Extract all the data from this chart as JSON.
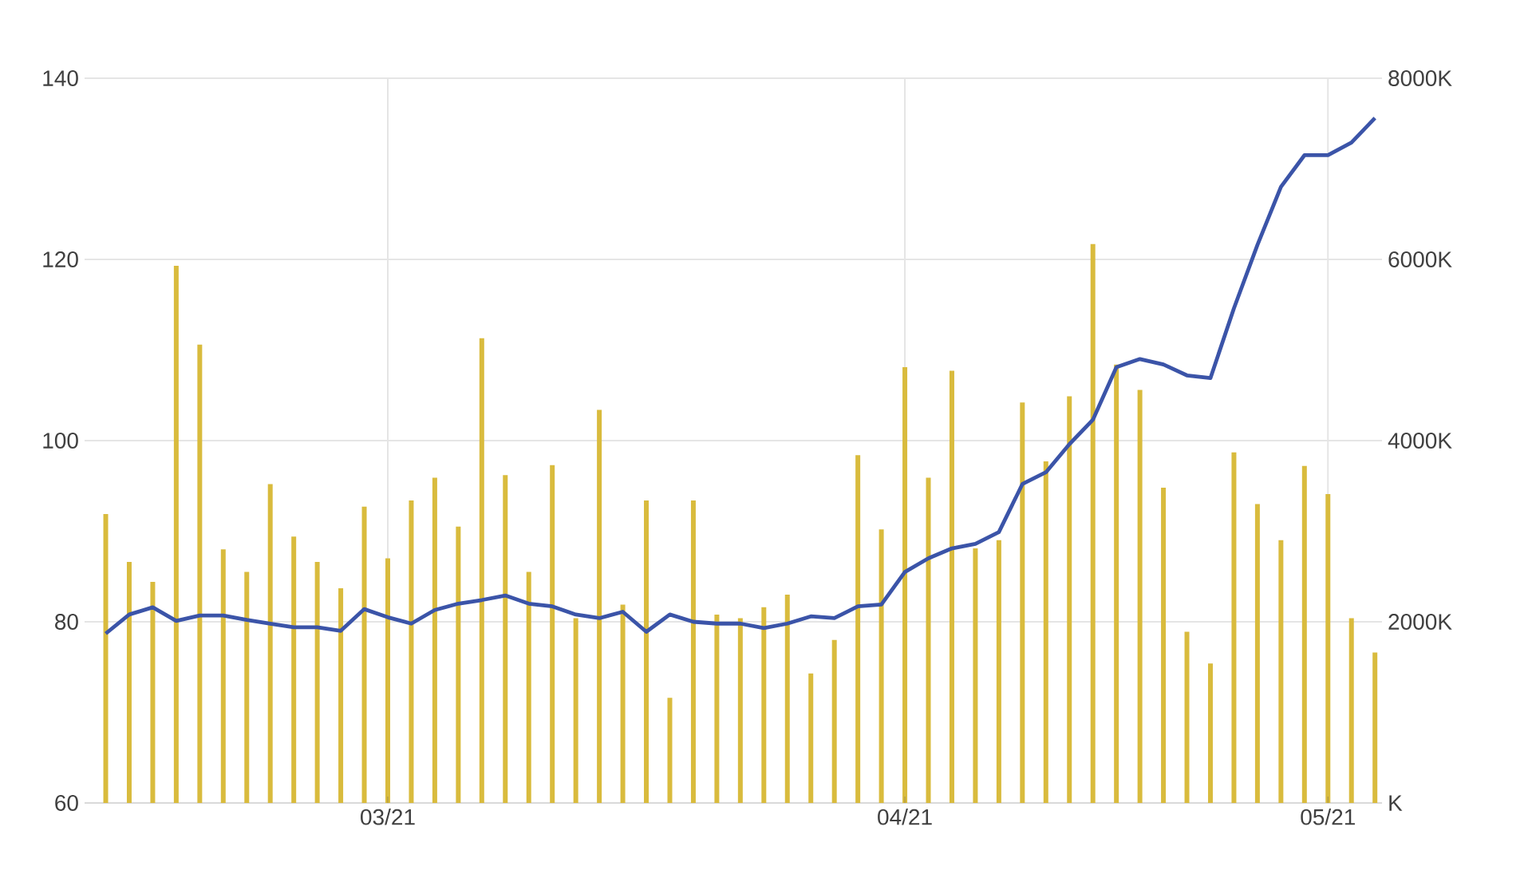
{
  "chart_data": {
    "type": "bar",
    "categories": [
      null,
      null,
      null,
      null,
      null,
      null,
      null,
      null,
      null,
      null,
      null,
      null,
      "03/21",
      null,
      null,
      null,
      null,
      null,
      null,
      null,
      null,
      null,
      null,
      null,
      null,
      null,
      null,
      null,
      null,
      null,
      null,
      null,
      null,
      null,
      "04/21",
      null,
      null,
      null,
      null,
      null,
      null,
      null,
      null,
      null,
      null,
      null,
      null,
      null,
      null,
      null,
      null,
      null,
      "05/21",
      null,
      null
    ],
    "series": [
      {
        "axis": "y2",
        "color": "#d9bb3d",
        "values": [
          3190,
          2660,
          2440,
          5930,
          5060,
          2800,
          2550,
          3520,
          2940,
          2660,
          2370,
          3270,
          2700,
          3340,
          3590,
          3050,
          5130,
          3620,
          2550,
          3730,
          2040,
          4340,
          2190,
          3340,
          1160,
          3340,
          2080,
          2040,
          2160,
          2300,
          1430,
          1800,
          3840,
          3020,
          4810,
          3590,
          4770,
          2810,
          2900,
          4420,
          3770,
          4490,
          6170,
          4840,
          4560,
          3480,
          1890,
          1540,
          3870,
          3300,
          2900,
          3720,
          3410,
          2040,
          1660
        ]
      },
      {
        "type": "line",
        "color": "#3b54a8",
        "values": [
          78.7,
          80.8,
          81.6,
          80.1,
          80.7,
          80.7,
          80.2,
          79.8,
          79.4,
          79.4,
          79.0,
          81.4,
          80.5,
          79.8,
          81.3,
          82.0,
          82.4,
          82.9,
          82.0,
          81.7,
          80.8,
          80.4,
          81.1,
          78.9,
          80.8,
          80.0,
          79.8,
          79.8,
          79.3,
          79.8,
          80.6,
          80.4,
          81.7,
          81.9,
          85.5,
          87.0,
          88.1,
          88.6,
          89.9,
          95.2,
          96.5,
          99.6,
          102.3,
          108.1,
          109.0,
          108.4,
          107.2,
          106.9,
          114.6,
          121.6,
          128.0,
          131.5,
          131.5,
          132.9,
          135.6
        ]
      }
    ],
    "ylim": [
      60,
      140
    ],
    "yticks": [
      60,
      80,
      100,
      120,
      140
    ],
    "y2lim": [
      0,
      8000
    ],
    "y2ticks": [
      {
        "value": 0,
        "label": "K"
      },
      {
        "value": 2000,
        "label": "2000K"
      },
      {
        "value": 4000,
        "label": "4000K"
      },
      {
        "value": 6000,
        "label": "6000K"
      },
      {
        "value": 8000,
        "label": "8000K"
      }
    ],
    "grid": true
  }
}
